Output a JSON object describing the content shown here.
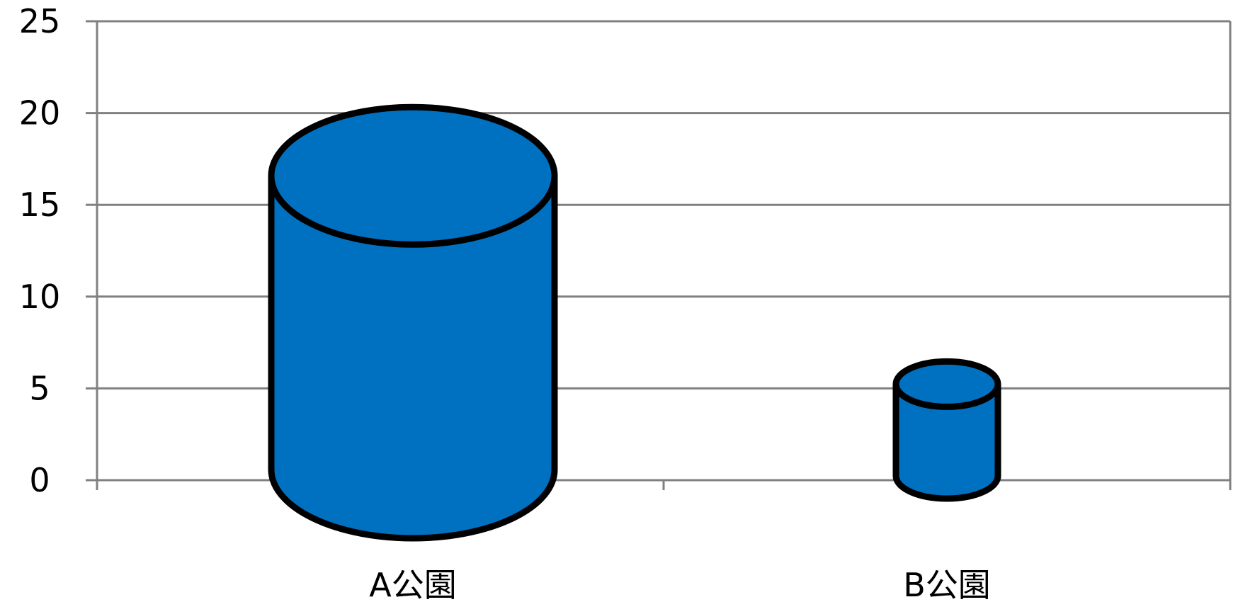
{
  "chart_data": {
    "type": "bar",
    "style": "3d-cylinder",
    "categories": [
      "A公園",
      "B公園"
    ],
    "series": [
      {
        "values": [
          16,
          5
        ]
      }
    ],
    "ylim": [
      0,
      25
    ],
    "yticks": [
      "0",
      "5",
      "10",
      "15",
      "20",
      "25"
    ],
    "grid": true,
    "legend": "none",
    "colors": {
      "bar": "#0070C0",
      "outline": "#000000",
      "grid": "#808080"
    }
  }
}
